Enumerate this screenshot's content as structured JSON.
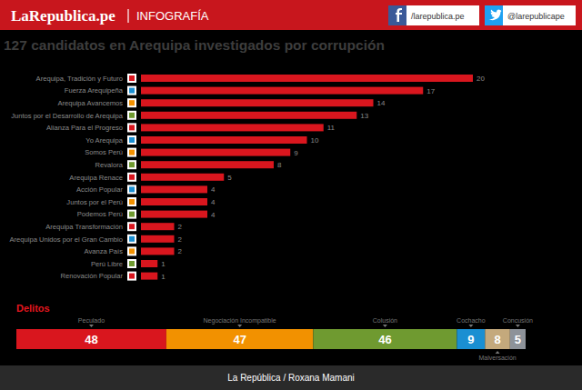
{
  "header": {
    "brand": "LaRepublica.pe",
    "section": "INFOGRAFÍA",
    "facebook": "/larepublica.pe",
    "twitter": "@larepublicape"
  },
  "footer": {
    "credit": "La República /  Roxana Mamani"
  },
  "chart_data": [
    {
      "type": "bar",
      "title": "127 candidatos en Arequipa investigados por corrupción",
      "orientation": "horizontal",
      "data_labels": true,
      "tick_labels": "y",
      "grid": false,
      "color": "#d9161e",
      "categories": [
        "Arequipa, Tradición y Futuro",
        "Fuerza Arequipeña",
        "Arequipa Avancemos",
        "Juntos por el Desarrollo de Arequipa",
        "Alianza Para el Progreso",
        "Yo Arequipa",
        "Somos Perú",
        "Revalora",
        "Arequipa Renace",
        "Acción Popular",
        "Juntos por el Perú",
        "Podemos Perú",
        "Arequipa Transformación",
        "Arequipa Unidos por el Gran Cambio",
        "Avanza País",
        "Perú Libre",
        "Renovación Popular"
      ],
      "values": [
        20,
        17,
        14,
        13,
        11,
        10,
        9,
        8,
        5,
        4,
        4,
        4,
        2,
        2,
        2,
        1,
        1
      ],
      "xlim": [
        0,
        20
      ]
    },
    {
      "type": "bar",
      "title": "Delitos",
      "orientation": "horizontal",
      "stacked": true,
      "data_labels": true,
      "tick_labels": false,
      "grid": false,
      "categories": [
        null
      ],
      "xlim": [
        0,
        163
      ],
      "series": [
        {
          "name": "Peculado",
          "color": "#d9161e",
          "values": [
            48
          ]
        },
        {
          "name": "Negociación Incompatible",
          "color": "#f29100",
          "values": [
            47
          ]
        },
        {
          "name": "Colusión",
          "color": "#6f9a30",
          "values": [
            46
          ]
        },
        {
          "name": "Cochacho",
          "color": "#1a8fd2",
          "values": [
            9
          ]
        },
        {
          "name": "Malversación",
          "color": "#c4a97c",
          "values": [
            8
          ]
        },
        {
          "name": "Concusión",
          "color": "#8d9299",
          "values": [
            5
          ]
        }
      ]
    }
  ]
}
